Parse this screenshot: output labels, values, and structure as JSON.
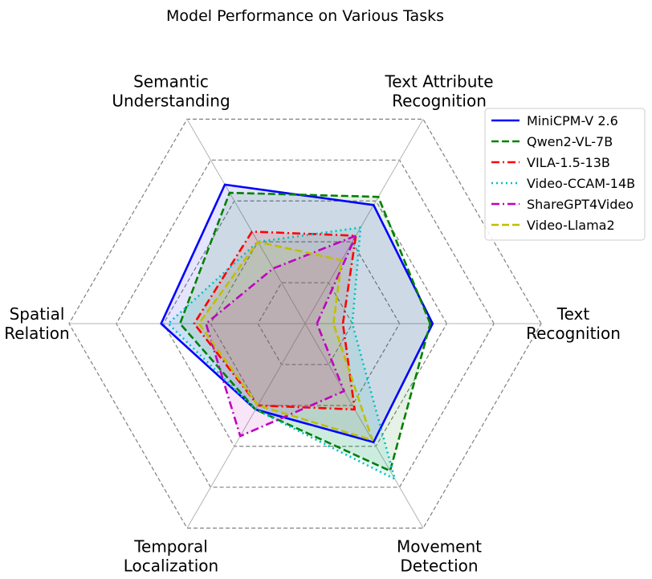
{
  "chart_data": {
    "type": "radar",
    "title": "Model Performance on Various Tasks",
    "axes": [
      {
        "label_lines": [
          "Text",
          "Recognition"
        ]
      },
      {
        "label_lines": [
          "Text Attribute",
          "Recognition"
        ]
      },
      {
        "label_lines": [
          "Semantic",
          "Understanding"
        ]
      },
      {
        "label_lines": [
          "Spatial",
          "Relation"
        ]
      },
      {
        "label_lines": [
          "Temporal",
          "Localization"
        ]
      },
      {
        "label_lines": [
          "Movement",
          "Detection"
        ]
      }
    ],
    "rmax": 1.0,
    "grid_levels": [
      0.2,
      0.4,
      0.6,
      0.8,
      1.0
    ],
    "legend_position": "upper right",
    "series": [
      {
        "name": "MiniCPM-V 2.6",
        "color": "#0000ff",
        "dash": "solid",
        "fill": true,
        "values": [
          0.54,
          0.58,
          0.68,
          0.61,
          0.42,
          0.58
        ]
      },
      {
        "name": "Qwen2-VL-7B",
        "color": "#008000",
        "dash": "dashed",
        "fill": true,
        "values": [
          0.53,
          0.62,
          0.64,
          0.53,
          0.42,
          0.72
        ]
      },
      {
        "name": "VILA-1.5-13B",
        "color": "#ff0000",
        "dash": "dashdot",
        "fill": true,
        "values": [
          0.16,
          0.43,
          0.45,
          0.47,
          0.4,
          0.42
        ]
      },
      {
        "name": "Video-CCAM-14B",
        "color": "#00bfbf",
        "dash": "dotted",
        "fill": true,
        "values": [
          0.2,
          0.47,
          0.4,
          0.58,
          0.42,
          0.76
        ]
      },
      {
        "name": "ShareGPT4Video",
        "color": "#bf00bf",
        "dash": "dashdot",
        "fill": true,
        "values": [
          0.05,
          0.43,
          0.27,
          0.42,
          0.55,
          0.33
        ]
      },
      {
        "name": "Video-Llama2",
        "color": "#bfbf00",
        "dash": "dashed",
        "fill": true,
        "values": [
          0.12,
          0.31,
          0.4,
          0.45,
          0.4,
          0.57
        ]
      }
    ]
  }
}
